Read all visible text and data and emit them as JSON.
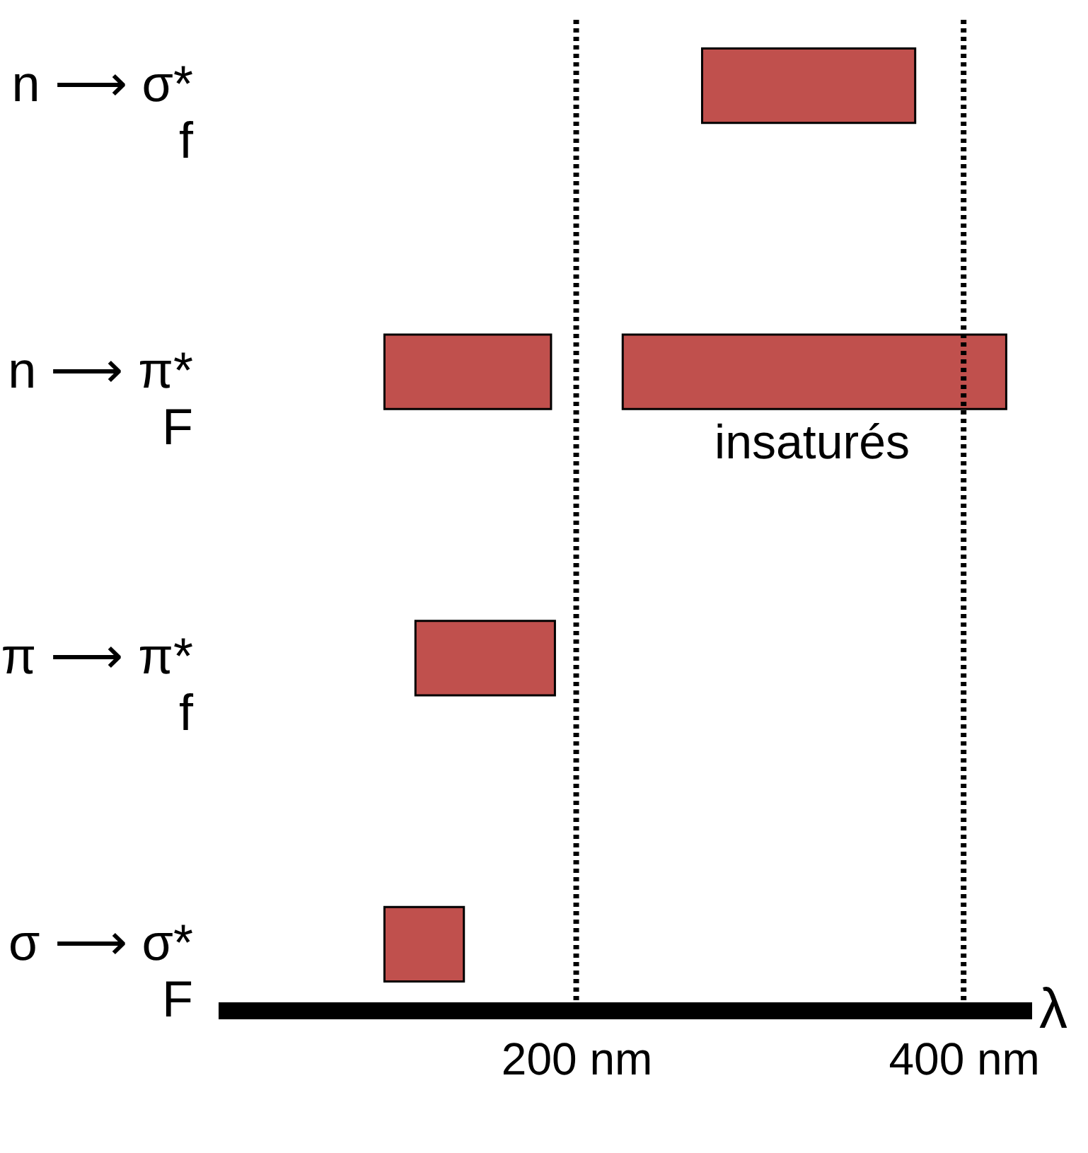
{
  "chart_data": {
    "type": "bar",
    "orientation": "horizontal",
    "categories": [
      "n ⟶ σ*\nf",
      "n ⟶ π*\nF",
      "π ⟶ π*\nf",
      "σ ⟶ σ*\nF"
    ],
    "series": [
      {
        "color": "#c0504d",
        "values": [
          110,
          86,
          72,
          41
        ],
        "base": [
          265,
          101,
          117,
          101
        ]
      },
      {
        "color": "#c0504d",
        "values": [
          null,
          198,
          null,
          null
        ],
        "base": [
          null,
          224,
          null,
          null
        ]
      }
    ],
    "xlabel": "λ",
    "xlim": [
      15,
      435
    ],
    "xticks": [
      {
        "value": 200,
        "label": "200 nm"
      },
      {
        "value": 400,
        "label": "400 nm"
      }
    ],
    "ref_lines": [
      {
        "axis": "x",
        "value": 200,
        "color": "#000000",
        "line_style": "dotted"
      },
      {
        "axis": "x",
        "value": 400,
        "color": "#000000",
        "line_style": "dotted"
      }
    ],
    "annotations": [
      "insaturés"
    ],
    "grid": false
  }
}
